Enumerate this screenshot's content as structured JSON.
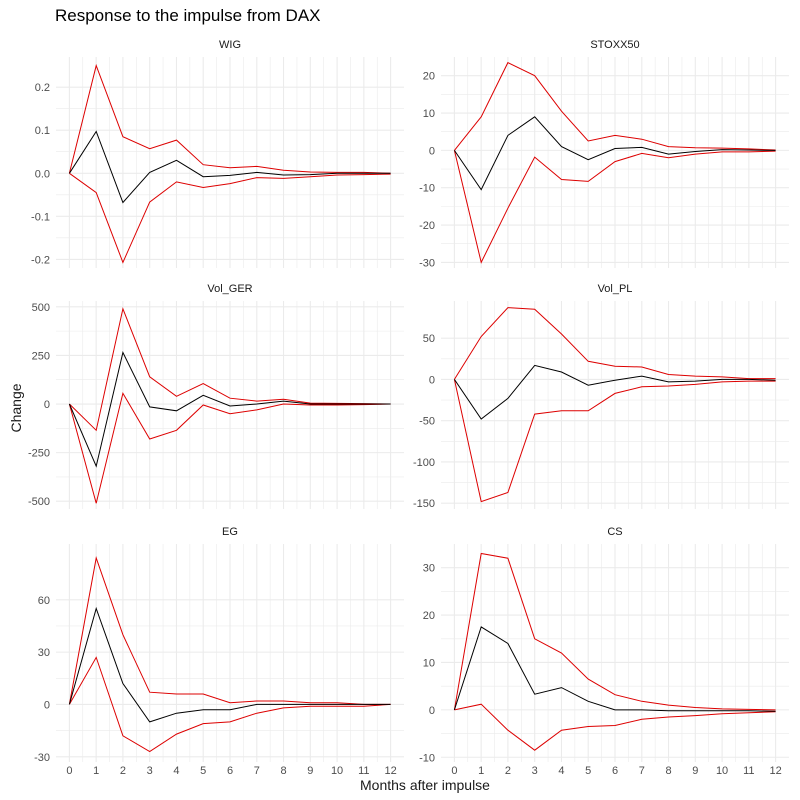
{
  "title": "Response to the impulse from DAX",
  "chart_data": {
    "type": "line",
    "title": "Response to the impulse from DAX",
    "xlabel": "Months after impulse",
    "ylabel": "Change",
    "x": [
      0,
      1,
      2,
      3,
      4,
      5,
      6,
      7,
      8,
      9,
      10,
      11,
      12
    ],
    "xlim": [
      -0.5,
      12.5
    ],
    "grid": true,
    "legend": "none",
    "colors": {
      "response": "#000000",
      "bounds": "#dd0000",
      "grid": "#ebebeb"
    },
    "panels": [
      {
        "name": "WIG",
        "ylim": [
          -0.22,
          0.27
        ],
        "yticks": [
          -0.2,
          -0.1,
          0.0,
          0.1,
          0.2
        ],
        "yticklabels": [
          "-0.2",
          "-0.1",
          "0.0",
          "0.1",
          "0.2"
        ],
        "response": [
          0,
          0.097,
          -0.068,
          0.002,
          0.03,
          -0.008,
          -0.005,
          0.002,
          -0.004,
          -0.003,
          0.0,
          0.0,
          0.0
        ],
        "upper": [
          0,
          0.25,
          0.085,
          0.057,
          0.077,
          0.02,
          0.013,
          0.016,
          0.007,
          0.003,
          0.002,
          0.002,
          0.0
        ],
        "lower": [
          0,
          -0.045,
          -0.207,
          -0.067,
          -0.02,
          -0.033,
          -0.024,
          -0.01,
          -0.012,
          -0.008,
          -0.004,
          -0.003,
          -0.002
        ]
      },
      {
        "name": "STOXX50",
        "ylim": [
          -31.5,
          25
        ],
        "yticks": [
          -30,
          -20,
          -10,
          0,
          10,
          20
        ],
        "yticklabels": [
          "-30",
          "-20",
          "-10",
          "0",
          "10",
          "20"
        ],
        "response": [
          0,
          -10.5,
          4.0,
          9.0,
          1.0,
          -2.5,
          0.5,
          0.8,
          -1.0,
          -0.3,
          0.2,
          0.1,
          0.0
        ],
        "upper": [
          0,
          9.0,
          23.5,
          20.0,
          10.5,
          2.5,
          4.0,
          3.0,
          1.0,
          0.7,
          0.6,
          0.4,
          0.1
        ],
        "lower": [
          0,
          -30.0,
          -15.5,
          -1.8,
          -7.8,
          -8.3,
          -3.0,
          -0.8,
          -2.0,
          -1.0,
          -0.4,
          -0.4,
          -0.2
        ]
      },
      {
        "name": "Vol_GER",
        "ylim": [
          -540,
          530
        ],
        "yticks": [
          -500,
          -250,
          0,
          250,
          500
        ],
        "yticklabels": [
          "-500",
          "-250",
          "0",
          "250",
          "500"
        ],
        "response": [
          0,
          -320,
          265,
          -15,
          -35,
          45,
          -10,
          0,
          15,
          0,
          0,
          0,
          0
        ],
        "upper": [
          0,
          -135,
          490,
          140,
          40,
          105,
          30,
          15,
          25,
          5,
          3,
          2,
          0
        ],
        "lower": [
          0,
          -510,
          55,
          -180,
          -135,
          -5,
          -50,
          -30,
          0,
          -5,
          -5,
          -3,
          0
        ]
      },
      {
        "name": "Vol_PL",
        "ylim": [
          -157,
          95
        ],
        "yticks": [
          -150,
          -100,
          -50,
          0,
          50
        ],
        "yticklabels": [
          "-150",
          "-100",
          "-50",
          "0",
          "50"
        ],
        "response": [
          0,
          -48,
          -23,
          17,
          9,
          -7,
          -1,
          4,
          -3,
          -2,
          0,
          0,
          -1
        ],
        "upper": [
          0,
          52,
          87,
          85,
          55,
          22,
          16,
          15,
          6,
          4,
          3,
          1,
          1
        ],
        "lower": [
          0,
          -148,
          -137,
          -42,
          -38,
          -38,
          -17,
          -9,
          -8,
          -6,
          -3,
          -2,
          -2
        ]
      },
      {
        "name": "EG",
        "ylim": [
          -33,
          92
        ],
        "yticks": [
          -30,
          0,
          30,
          60
        ],
        "yticklabels": [
          "-30",
          "0",
          "30",
          "60"
        ],
        "response": [
          0,
          55,
          12,
          -10,
          -5,
          -3,
          -3,
          0,
          0,
          0,
          0,
          0,
          0
        ],
        "upper": [
          0,
          84,
          40,
          7,
          6,
          6,
          1,
          2,
          2,
          1,
          1,
          0,
          0
        ],
        "lower": [
          0,
          27,
          -18,
          -27,
          -17,
          -11,
          -10,
          -5,
          -2,
          -1,
          -1,
          -1,
          0
        ]
      },
      {
        "name": "CS",
        "ylim": [
          -11,
          35
        ],
        "yticks": [
          -10,
          0,
          10,
          20,
          30
        ],
        "yticklabels": [
          "-10",
          "0",
          "10",
          "20",
          "30"
        ],
        "response": [
          0,
          17.5,
          14.0,
          3.3,
          4.7,
          1.8,
          0.0,
          0.0,
          -0.2,
          -0.2,
          -0.2,
          -0.2,
          -0.3
        ],
        "upper": [
          0,
          33.0,
          32.0,
          15.0,
          12.0,
          6.5,
          3.2,
          1.8,
          1.0,
          0.5,
          0.2,
          0.1,
          0.0
        ],
        "lower": [
          0,
          1.2,
          -4.3,
          -8.5,
          -4.3,
          -3.5,
          -3.3,
          -2.0,
          -1.5,
          -1.2,
          -0.8,
          -0.6,
          -0.4
        ]
      }
    ]
  }
}
